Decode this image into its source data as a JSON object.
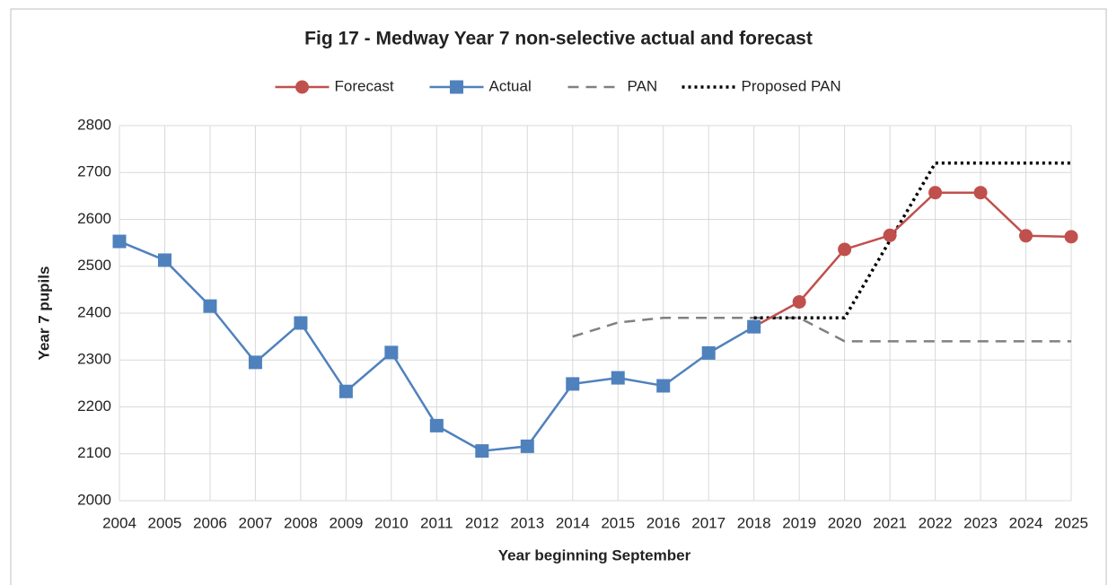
{
  "chart_data": {
    "type": "line",
    "title": "Fig 17 - Medway Year 7 non-selective actual and forecast",
    "x_label": "Year beginning September",
    "y_label": "Year 7 pupils",
    "x": [
      2004,
      2005,
      2006,
      2007,
      2008,
      2009,
      2010,
      2011,
      2012,
      2013,
      2014,
      2015,
      2016,
      2017,
      2018,
      2019,
      2020,
      2021,
      2022,
      2023,
      2024,
      2025
    ],
    "xlim": [
      2004,
      2025
    ],
    "xticks": [
      2004,
      2005,
      2006,
      2007,
      2008,
      2009,
      2010,
      2011,
      2012,
      2013,
      2014,
      2015,
      2016,
      2017,
      2018,
      2019,
      2020,
      2021,
      2022,
      2023,
      2024,
      2025
    ],
    "ylim": [
      2000,
      2800
    ],
    "yticks": [
      2000,
      2100,
      2200,
      2300,
      2400,
      2500,
      2600,
      2700,
      2800
    ],
    "grid": true,
    "legend": "top",
    "series": [
      {
        "name": "Forecast",
        "color": "#c0504d",
        "marker": "circle",
        "dash": "solid",
        "values": [
          null,
          null,
          null,
          null,
          null,
          null,
          null,
          null,
          null,
          null,
          null,
          null,
          null,
          null,
          2371,
          2424,
          2536,
          2566,
          2657,
          2657,
          2565,
          2563
        ]
      },
      {
        "name": "Actual",
        "color": "#4f81bd",
        "marker": "square",
        "dash": "solid",
        "values": [
          2553,
          2513,
          2415,
          2295,
          2379,
          2233,
          2316,
          2160,
          2106,
          2116,
          2249,
          2262,
          2245,
          2315,
          2371,
          null,
          null,
          null,
          null,
          null,
          null,
          null
        ]
      },
      {
        "name": "PAN",
        "color": "#808080",
        "marker": "none",
        "dash": "dashed",
        "values": [
          null,
          null,
          null,
          null,
          null,
          null,
          null,
          null,
          null,
          null,
          2350,
          2380,
          2390,
          2390,
          2390,
          2390,
          2340,
          2340,
          2340,
          2340,
          2340,
          2340
        ]
      },
      {
        "name": "Proposed PAN",
        "color": "#000000",
        "marker": "none",
        "dash": "dotted",
        "values": [
          null,
          null,
          null,
          null,
          null,
          null,
          null,
          null,
          null,
          null,
          null,
          null,
          null,
          null,
          2390,
          2390,
          2390,
          2555,
          2720,
          2720,
          2720,
          2720
        ]
      }
    ]
  }
}
